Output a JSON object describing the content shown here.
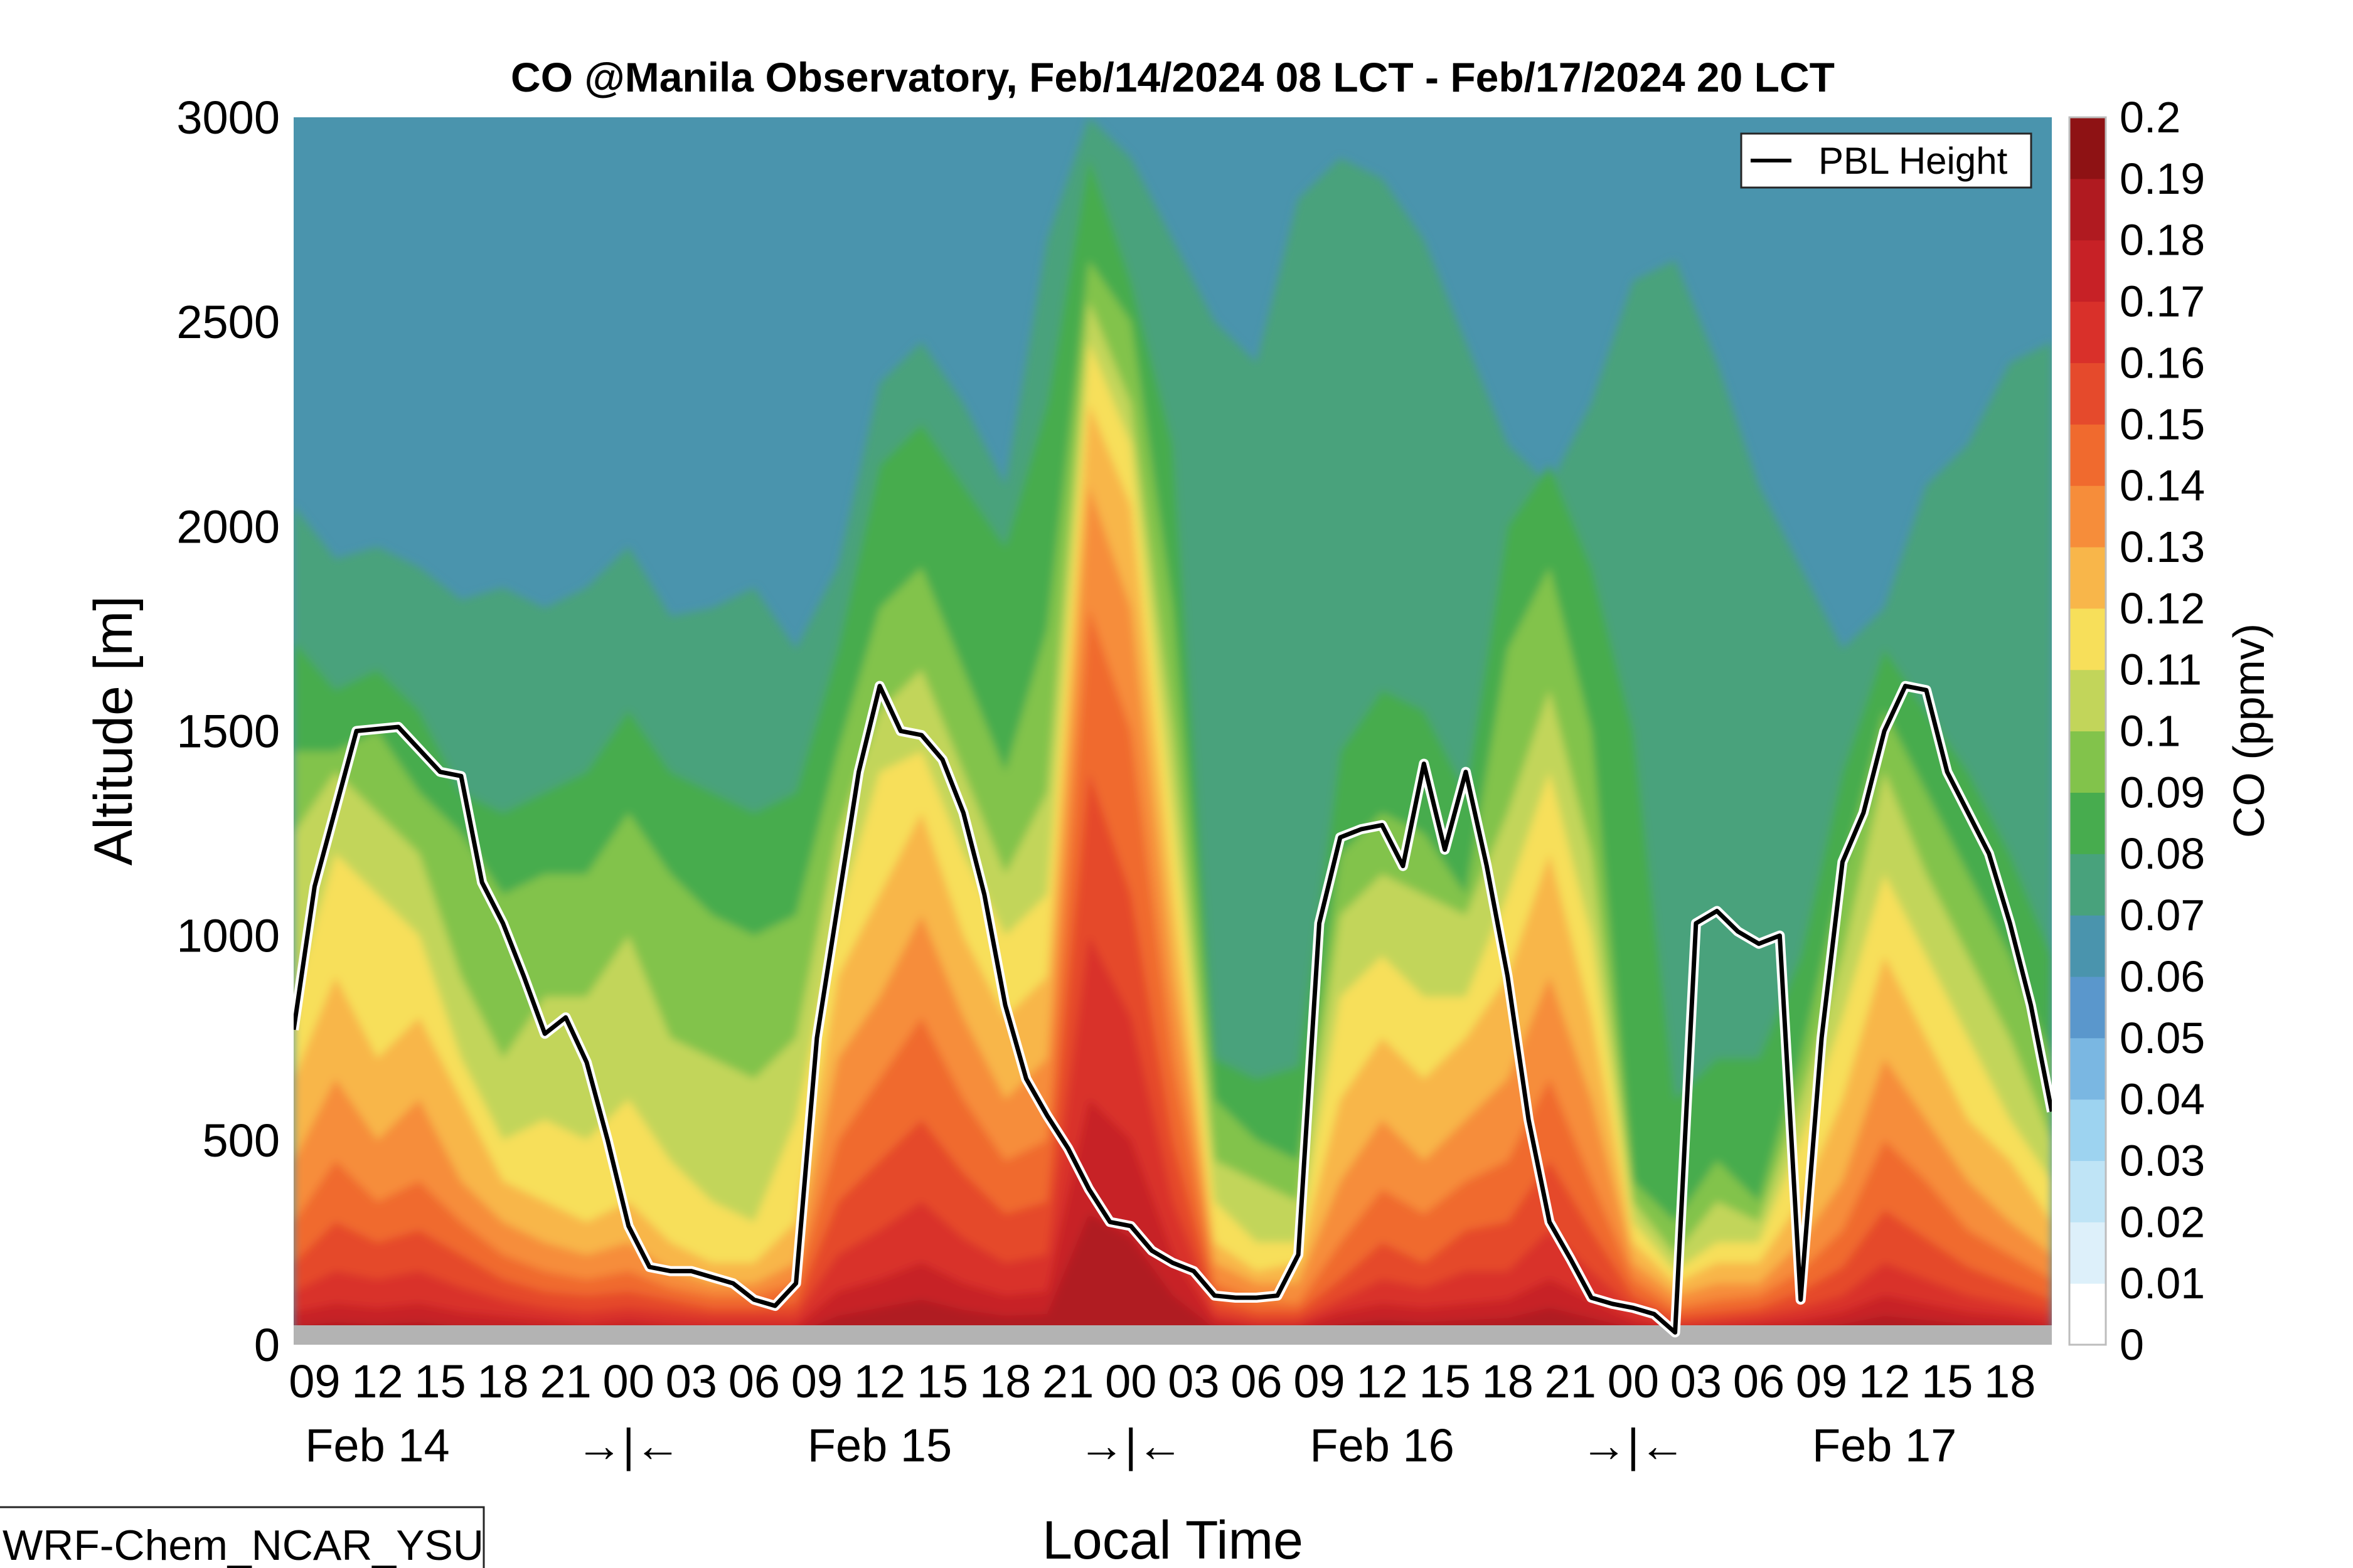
{
  "chart_data": {
    "type": "heatmap",
    "title": "CO @Manila Observatory, Feb/14/2024 08 LCT - Feb/17/2024 20 LCT",
    "xlabel": "Local Time",
    "ylabel": "Altitude [m]",
    "ylim": [
      0,
      3000
    ],
    "xlim_hours": [
      0,
      84
    ],
    "yticks": [
      "0",
      "500",
      "1000",
      "1500",
      "2000",
      "2500",
      "3000"
    ],
    "ytick_values": [
      0,
      500,
      1000,
      1500,
      2000,
      2500,
      3000
    ],
    "hour_tick_labels": [
      "09",
      "12",
      "15",
      "18",
      "21",
      "00",
      "03",
      "06",
      "09",
      "12",
      "15",
      "18",
      "21",
      "00",
      "03",
      "06",
      "09",
      "12",
      "15",
      "18",
      "21",
      "00",
      "03",
      "06",
      "09",
      "12",
      "15",
      "18"
    ],
    "hour_tick_offsets": [
      1,
      4,
      7,
      10,
      13,
      16,
      19,
      22,
      25,
      28,
      31,
      34,
      37,
      40,
      43,
      46,
      49,
      52,
      55,
      58,
      61,
      64,
      67,
      70,
      73,
      76,
      79,
      82
    ],
    "day_labels": [
      {
        "text": "Feb 14",
        "offset": 4
      },
      {
        "text": "→|←",
        "offset": 16
      },
      {
        "text": "Feb 15",
        "offset": 28
      },
      {
        "text": "→|←",
        "offset": 40
      },
      {
        "text": "Feb 16",
        "offset": 52
      },
      {
        "text": "→|←",
        "offset": 64
      },
      {
        "text": "Feb 17",
        "offset": 76
      }
    ],
    "colorbar": {
      "label": "CO (ppmv)",
      "levels": [
        0,
        0.01,
        0.02,
        0.03,
        0.04,
        0.05,
        0.06,
        0.07,
        0.08,
        0.09,
        0.1,
        0.11,
        0.12,
        0.13,
        0.14,
        0.15,
        0.16,
        0.17,
        0.18,
        0.19,
        0.2
      ],
      "tick_labels": [
        "0",
        "0.01",
        "0.02",
        "0.03",
        "0.04",
        "0.05",
        "0.06",
        "0.07",
        "0.08",
        "0.09",
        "0.1",
        "0.11",
        "0.12",
        "0.13",
        "0.14",
        "0.15",
        "0.16",
        "0.17",
        "0.18",
        "0.19",
        "0.2"
      ],
      "colors": [
        "#ffffff",
        "#ddf0fa",
        "#bfe4f6",
        "#9dd3f0",
        "#7ab7e2",
        "#5a97cc",
        "#4a94ad",
        "#48a27c",
        "#47ac4e",
        "#82c34b",
        "#c2d55a",
        "#f7df5a",
        "#f8b64a",
        "#f68d3a",
        "#f06a2e",
        "#e54a2c",
        "#d9302a",
        "#c72126",
        "#b01a20",
        "#8e1214"
      ]
    },
    "contour_levels_ppmv": [
      0.07,
      0.08,
      0.09,
      0.1,
      0.11,
      0.12,
      0.13,
      0.14,
      0.15,
      0.16,
      0.17,
      0.18
    ],
    "contour_heights_m": {
      "hours": [
        0,
        2,
        4,
        6,
        8,
        10,
        12,
        14,
        16,
        18,
        20,
        22,
        24,
        26,
        28,
        30,
        32,
        34,
        36,
        38,
        40,
        42,
        44,
        46,
        48,
        50,
        52,
        54,
        56,
        58,
        60,
        62,
        64,
        66,
        68,
        70,
        72,
        74,
        76,
        78,
        80,
        82,
        84
      ],
      "0.07": [
        2050,
        1920,
        1950,
        1900,
        1820,
        1850,
        1800,
        1850,
        1950,
        1780,
        1800,
        1850,
        1700,
        1900,
        2350,
        2450,
        2300,
        2100,
        2700,
        3000,
        2900,
        2700,
        2500,
        2400,
        2800,
        2900,
        2850,
        2700,
        2450,
        2200,
        2100,
        2300,
        2600,
        2650,
        2400,
        2100,
        1900,
        1700,
        1800,
        2100,
        2200,
        2400,
        2450
      ],
      "0.08": [
        1720,
        1600,
        1650,
        1550,
        1350,
        1300,
        1350,
        1400,
        1550,
        1400,
        1350,
        1300,
        1350,
        1700,
        2150,
        2250,
        2100,
        1950,
        2300,
        2900,
        2600,
        2200,
        700,
        650,
        680,
        1450,
        1600,
        1550,
        1350,
        2000,
        2150,
        1900,
        1500,
        600,
        700,
        700,
        950,
        1400,
        1700,
        1550,
        1400,
        1200,
        950
      ],
      "0.09": [
        1450,
        1450,
        1500,
        1350,
        1250,
        1100,
        1150,
        1150,
        1300,
        1150,
        1050,
        1000,
        1050,
        1450,
        1800,
        1900,
        1650,
        1400,
        1750,
        2650,
        2500,
        1800,
        600,
        500,
        450,
        1200,
        1300,
        1250,
        1100,
        1700,
        1900,
        1500,
        400,
        300,
        450,
        350,
        700,
        1150,
        1550,
        1350,
        1150,
        950,
        700
      ],
      "0.1": [
        1250,
        1400,
        1300,
        1200,
        900,
        700,
        850,
        850,
        1000,
        750,
        700,
        650,
        750,
        1250,
        1550,
        1650,
        1400,
        1150,
        1350,
        2550,
        2300,
        1500,
        450,
        400,
        350,
        1050,
        1150,
        1100,
        1050,
        1300,
        1600,
        1200,
        350,
        220,
        350,
        300,
        600,
        950,
        1400,
        1150,
        950,
        750,
        500
      ],
      "0.11": [
        850,
        1200,
        1100,
        1000,
        700,
        500,
        550,
        500,
        600,
        450,
        350,
        300,
        550,
        1050,
        1400,
        1450,
        1200,
        1000,
        1100,
        2450,
        2200,
        1300,
        350,
        250,
        250,
        850,
        950,
        850,
        850,
        1100,
        1400,
        1000,
        300,
        180,
        250,
        250,
        500,
        800,
        1150,
        950,
        750,
        550,
        400
      ],
      "0.12": [
        650,
        900,
        700,
        800,
        600,
        400,
        350,
        300,
        350,
        250,
        200,
        200,
        300,
        900,
        1100,
        1300,
        1000,
        800,
        900,
        2300,
        2050,
        1100,
        250,
        180,
        200,
        600,
        750,
        650,
        750,
        900,
        1200,
        800,
        250,
        150,
        200,
        200,
        350,
        600,
        950,
        750,
        550,
        450,
        300
      ],
      "0.13": [
        450,
        650,
        500,
        600,
        400,
        300,
        250,
        220,
        250,
        180,
        150,
        150,
        200,
        700,
        850,
        1050,
        800,
        600,
        700,
        2100,
        1800,
        900,
        200,
        150,
        150,
        400,
        550,
        450,
        550,
        650,
        900,
        600,
        200,
        120,
        150,
        150,
        250,
        400,
        700,
        550,
        400,
        300,
        220
      ],
      "0.14": [
        300,
        450,
        350,
        400,
        300,
        220,
        180,
        160,
        180,
        140,
        120,
        120,
        150,
        500,
        650,
        800,
        600,
        450,
        500,
        1800,
        1500,
        700,
        150,
        110,
        100,
        250,
        380,
        320,
        400,
        450,
        650,
        400,
        160,
        90,
        110,
        120,
        180,
        280,
        500,
        400,
        280,
        220,
        160
      ],
      "0.15": [
        200,
        300,
        250,
        280,
        220,
        160,
        130,
        120,
        130,
        110,
        90,
        90,
        100,
        350,
        450,
        550,
        420,
        320,
        350,
        1400,
        1100,
        500,
        110,
        80,
        80,
        160,
        250,
        200,
        280,
        300,
        450,
        280,
        120,
        70,
        80,
        90,
        130,
        190,
        330,
        260,
        190,
        150,
        110
      ],
      "0.16": [
        130,
        180,
        160,
        180,
        140,
        110,
        90,
        80,
        90,
        80,
        70,
        70,
        70,
        220,
        280,
        350,
        260,
        200,
        220,
        1000,
        800,
        350,
        80,
        60,
        60,
        110,
        160,
        140,
        180,
        180,
        280,
        180,
        90,
        50,
        60,
        70,
        90,
        120,
        200,
        160,
        120,
        100,
        80
      ],
      "0.17": [
        80,
        100,
        90,
        100,
        80,
        70,
        60,
        50,
        60,
        50,
        45,
        45,
        45,
        130,
        160,
        200,
        150,
        120,
        130,
        600,
        500,
        220,
        60,
        45,
        45,
        80,
        100,
        90,
        100,
        110,
        160,
        110,
        60,
        40,
        45,
        50,
        60,
        80,
        120,
        100,
        80,
        70,
        55
      ],
      "0.18": [
        45,
        55,
        50,
        55,
        45,
        40,
        35,
        30,
        35,
        30,
        28,
        28,
        28,
        70,
        90,
        110,
        85,
        70,
        75,
        320,
        260,
        120,
        40,
        30,
        30,
        50,
        60,
        55,
        60,
        65,
        90,
        65,
        40,
        25,
        30,
        35,
        40,
        50,
        70,
        60,
        50,
        45,
        35
      ]
    },
    "series": [
      {
        "name": "PBL Height",
        "hours": [
          0,
          1,
          3,
          5,
          7,
          8,
          9,
          10,
          11,
          12,
          13,
          14,
          15,
          16,
          17,
          18,
          19,
          21,
          22,
          23,
          24,
          25,
          27,
          28,
          29,
          30,
          31,
          32,
          33,
          34,
          35,
          36,
          37,
          38,
          39,
          40,
          41,
          42,
          43,
          44,
          45,
          46,
          47,
          48,
          49,
          50,
          51,
          52,
          53,
          54,
          55,
          56,
          57,
          58,
          59,
          60,
          61,
          62,
          63,
          64,
          65,
          66,
          67,
          68,
          69,
          70,
          71,
          72,
          73,
          74,
          75,
          76,
          77,
          78,
          79,
          80,
          81,
          82,
          83,
          84
        ],
        "values": [
          770,
          1120,
          1500,
          1510,
          1400,
          1390,
          1130,
          1030,
          900,
          760,
          800,
          690,
          500,
          290,
          190,
          180,
          180,
          150,
          110,
          95,
          150,
          750,
          1400,
          1610,
          1500,
          1490,
          1430,
          1300,
          1100,
          830,
          650,
          560,
          480,
          380,
          300,
          290,
          230,
          200,
          180,
          120,
          115,
          115,
          120,
          220,
          1030,
          1240,
          1260,
          1270,
          1170,
          1420,
          1210,
          1400,
          1170,
          900,
          550,
          300,
          210,
          115,
          100,
          90,
          75,
          30,
          1030,
          1060,
          1010,
          980,
          1000,
          110,
          750,
          1180,
          1300,
          1500,
          1610,
          1600,
          1400,
          1300,
          1200,
          1030,
          830,
          570
        ]
      }
    ],
    "legend": {
      "entries": [
        "PBL Height"
      ],
      "placement": "top-right"
    }
  },
  "footer": {
    "model_tag": "WRF-Chem_NCAR_YSU"
  }
}
